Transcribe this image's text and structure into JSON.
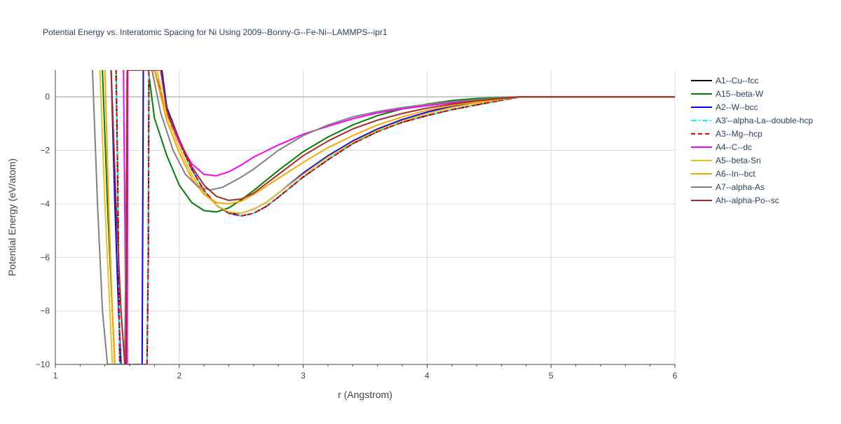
{
  "chart_data": {
    "type": "line",
    "title": "Potential Energy vs. Interatomic Spacing for Ni Using 2009--Bonny-G--Fe-Ni--LAMMPS--ipr1",
    "xlabel": "r (Angstrom)",
    "ylabel": "Potential Energy (eV/atom)",
    "xlim": [
      1,
      6
    ],
    "ylim": [
      -10,
      1
    ],
    "x_ticks": [
      1,
      2,
      3,
      4,
      5,
      6
    ],
    "x_tick_labels": [
      "1",
      "2",
      "3",
      "4",
      "5",
      "6"
    ],
    "y_ticks": [
      -10,
      -8,
      -6,
      -4,
      -2,
      0
    ],
    "y_tick_labels": [
      "−10",
      "−8",
      "−6",
      "−4",
      "−2",
      "0"
    ],
    "grid": true,
    "legend_position": "right",
    "series": [
      {
        "name": "A1--Cu--fcc",
        "color": "#000000",
        "dash": "solid",
        "points": [
          [
            1.49,
            1
          ],
          [
            1.5,
            -2
          ],
          [
            1.51,
            -6
          ],
          [
            1.52,
            -10
          ],
          [
            1.74,
            -10
          ],
          [
            1.75,
            -6
          ],
          [
            1.755,
            1
          ],
          [
            1.8,
            1
          ],
          [
            1.9,
            -0.6
          ],
          [
            2.0,
            -1.7
          ],
          [
            2.1,
            -2.7
          ],
          [
            2.2,
            -3.5
          ],
          [
            2.3,
            -4.05
          ],
          [
            2.4,
            -4.35
          ],
          [
            2.5,
            -4.45
          ],
          [
            2.6,
            -4.35
          ],
          [
            2.7,
            -4.1
          ],
          [
            2.8,
            -3.75
          ],
          [
            3.0,
            -3.0
          ],
          [
            3.2,
            -2.35
          ],
          [
            3.4,
            -1.75
          ],
          [
            3.6,
            -1.3
          ],
          [
            3.8,
            -0.95
          ],
          [
            4.0,
            -0.7
          ],
          [
            4.2,
            -0.48
          ],
          [
            4.4,
            -0.3
          ],
          [
            4.6,
            -0.13
          ],
          [
            4.75,
            0
          ],
          [
            6.0,
            0
          ]
        ]
      },
      {
        "name": "A15--beta-W",
        "color": "#008000",
        "dash": "solid",
        "points": [
          [
            1.38,
            1
          ],
          [
            1.42,
            -4
          ],
          [
            1.46,
            -8
          ],
          [
            1.48,
            -10
          ],
          [
            1.56,
            -10
          ],
          [
            1.57,
            -5
          ],
          [
            1.58,
            1
          ],
          [
            1.75,
            1
          ],
          [
            1.8,
            -0.8
          ],
          [
            1.9,
            -2.2
          ],
          [
            2.0,
            -3.3
          ],
          [
            2.1,
            -3.95
          ],
          [
            2.2,
            -4.25
          ],
          [
            2.3,
            -4.3
          ],
          [
            2.4,
            -4.15
          ],
          [
            2.5,
            -3.85
          ],
          [
            2.6,
            -3.5
          ],
          [
            2.8,
            -2.75
          ],
          [
            3.0,
            -2.05
          ],
          [
            3.2,
            -1.5
          ],
          [
            3.4,
            -1.05
          ],
          [
            3.6,
            -0.7
          ],
          [
            3.8,
            -0.45
          ],
          [
            4.0,
            -0.27
          ],
          [
            4.2,
            -0.14
          ],
          [
            4.4,
            -0.06
          ],
          [
            4.75,
            0
          ],
          [
            6.0,
            0
          ]
        ]
      },
      {
        "name": "A2--W--bcc",
        "color": "#0000ff",
        "dash": "solid",
        "points": [
          [
            1.45,
            1
          ],
          [
            1.48,
            -4
          ],
          [
            1.51,
            -8
          ],
          [
            1.53,
            -10
          ],
          [
            1.7,
            -10
          ],
          [
            1.705,
            -5
          ],
          [
            1.71,
            1
          ],
          [
            1.86,
            1
          ],
          [
            1.9,
            -0.4
          ],
          [
            2.0,
            -1.6
          ],
          [
            2.1,
            -2.7
          ],
          [
            2.2,
            -3.5
          ],
          [
            2.3,
            -4.05
          ],
          [
            2.4,
            -4.35
          ],
          [
            2.5,
            -4.35
          ],
          [
            2.6,
            -4.2
          ],
          [
            2.7,
            -3.95
          ],
          [
            2.8,
            -3.6
          ],
          [
            3.0,
            -2.85
          ],
          [
            3.2,
            -2.2
          ],
          [
            3.4,
            -1.65
          ],
          [
            3.6,
            -1.2
          ],
          [
            3.8,
            -0.85
          ],
          [
            4.0,
            -0.57
          ],
          [
            4.2,
            -0.35
          ],
          [
            4.4,
            -0.2
          ],
          [
            4.6,
            -0.08
          ],
          [
            4.75,
            0
          ],
          [
            6.0,
            0
          ]
        ]
      },
      {
        "name": "A3'--alpha-La--double-hcp",
        "color": "#00ffff",
        "dash": "dashdot",
        "points": [
          [
            1.49,
            1
          ],
          [
            1.5,
            -2
          ],
          [
            1.51,
            -6
          ],
          [
            1.52,
            -10
          ],
          [
            1.74,
            -10
          ],
          [
            1.75,
            -6
          ],
          [
            1.755,
            1
          ],
          [
            1.8,
            1
          ],
          [
            1.9,
            -0.6
          ],
          [
            2.0,
            -1.7
          ],
          [
            2.1,
            -2.7
          ],
          [
            2.2,
            -3.5
          ],
          [
            2.3,
            -4.05
          ],
          [
            2.4,
            -4.35
          ],
          [
            2.5,
            -4.45
          ],
          [
            2.6,
            -4.35
          ],
          [
            2.7,
            -4.1
          ],
          [
            2.8,
            -3.75
          ],
          [
            3.0,
            -3.0
          ],
          [
            3.2,
            -2.35
          ],
          [
            3.4,
            -1.75
          ],
          [
            3.6,
            -1.3
          ],
          [
            3.8,
            -0.95
          ],
          [
            4.0,
            -0.7
          ],
          [
            4.2,
            -0.48
          ],
          [
            4.4,
            -0.3
          ],
          [
            4.6,
            -0.13
          ],
          [
            4.75,
            0
          ],
          [
            6.0,
            0
          ]
        ]
      },
      {
        "name": "A3--Mg--hcp",
        "color": "#ff0000",
        "dash": "dash",
        "points": [
          [
            1.49,
            1
          ],
          [
            1.5,
            -2
          ],
          [
            1.51,
            -6
          ],
          [
            1.52,
            -10
          ],
          [
            1.74,
            -10
          ],
          [
            1.75,
            -6
          ],
          [
            1.755,
            1
          ],
          [
            1.8,
            1
          ],
          [
            1.9,
            -0.6
          ],
          [
            2.0,
            -1.7
          ],
          [
            2.1,
            -2.7
          ],
          [
            2.2,
            -3.5
          ],
          [
            2.3,
            -4.05
          ],
          [
            2.4,
            -4.35
          ],
          [
            2.5,
            -4.45
          ],
          [
            2.6,
            -4.35
          ],
          [
            2.7,
            -4.1
          ],
          [
            2.8,
            -3.75
          ],
          [
            3.0,
            -3.0
          ],
          [
            3.2,
            -2.35
          ],
          [
            3.4,
            -1.75
          ],
          [
            3.6,
            -1.3
          ],
          [
            3.8,
            -0.95
          ],
          [
            4.0,
            -0.7
          ],
          [
            4.2,
            -0.48
          ],
          [
            4.4,
            -0.3
          ],
          [
            4.6,
            -0.13
          ],
          [
            4.75,
            0
          ],
          [
            6.0,
            0
          ]
        ]
      },
      {
        "name": "A4--C--dc",
        "color": "#ff00ff",
        "dash": "solid",
        "points": [
          [
            1.55,
            1
          ],
          [
            1.56,
            -4
          ],
          [
            1.57,
            -10
          ],
          [
            1.58,
            -10
          ],
          [
            1.585,
            1
          ],
          [
            1.85,
            1
          ],
          [
            1.9,
            -0.5
          ],
          [
            2.0,
            -1.7
          ],
          [
            2.1,
            -2.5
          ],
          [
            2.2,
            -2.9
          ],
          [
            2.3,
            -2.95
          ],
          [
            2.4,
            -2.8
          ],
          [
            2.5,
            -2.55
          ],
          [
            2.6,
            -2.25
          ],
          [
            2.8,
            -1.8
          ],
          [
            3.0,
            -1.4
          ],
          [
            3.2,
            -1.1
          ],
          [
            3.4,
            -0.82
          ],
          [
            3.6,
            -0.6
          ],
          [
            3.8,
            -0.45
          ],
          [
            4.0,
            -0.33
          ],
          [
            4.2,
            -0.22
          ],
          [
            4.4,
            -0.12
          ],
          [
            4.6,
            -0.05
          ],
          [
            4.75,
            0
          ],
          [
            6.0,
            0
          ]
        ]
      },
      {
        "name": "A5--beta-Sn",
        "color": "#e6c229",
        "dash": "solid",
        "points": [
          [
            1.36,
            1
          ],
          [
            1.4,
            -4
          ],
          [
            1.44,
            -8
          ],
          [
            1.46,
            -10
          ],
          [
            1.56,
            -10
          ],
          [
            1.57,
            -5
          ],
          [
            1.58,
            1
          ],
          [
            1.82,
            1
          ],
          [
            1.9,
            -0.7
          ],
          [
            2.0,
            -1.9
          ],
          [
            2.1,
            -2.9
          ],
          [
            2.2,
            -3.6
          ],
          [
            2.3,
            -4.05
          ],
          [
            2.4,
            -4.3
          ],
          [
            2.5,
            -4.35
          ],
          [
            2.6,
            -4.2
          ],
          [
            2.7,
            -3.95
          ],
          [
            2.8,
            -3.6
          ],
          [
            3.0,
            -2.9
          ],
          [
            3.2,
            -2.25
          ],
          [
            3.4,
            -1.7
          ],
          [
            3.6,
            -1.25
          ],
          [
            3.8,
            -0.9
          ],
          [
            4.0,
            -0.62
          ],
          [
            4.2,
            -0.4
          ],
          [
            4.4,
            -0.23
          ],
          [
            4.6,
            -0.09
          ],
          [
            4.75,
            0
          ],
          [
            6.0,
            0
          ]
        ]
      },
      {
        "name": "A6--In--bct",
        "color": "#ffa500",
        "dash": "solid",
        "points": [
          [
            1.4,
            1
          ],
          [
            1.43,
            -4
          ],
          [
            1.46,
            -8
          ],
          [
            1.48,
            -10
          ],
          [
            1.56,
            -10
          ],
          [
            1.57,
            -5
          ],
          [
            1.58,
            1
          ],
          [
            1.8,
            1
          ],
          [
            1.9,
            -0.9
          ],
          [
            2.0,
            -2.1
          ],
          [
            2.1,
            -3.05
          ],
          [
            2.2,
            -3.65
          ],
          [
            2.3,
            -3.95
          ],
          [
            2.4,
            -4.0
          ],
          [
            2.5,
            -3.9
          ],
          [
            2.6,
            -3.65
          ],
          [
            2.8,
            -3.05
          ],
          [
            3.0,
            -2.45
          ],
          [
            3.2,
            -1.9
          ],
          [
            3.4,
            -1.45
          ],
          [
            3.6,
            -1.05
          ],
          [
            3.8,
            -0.75
          ],
          [
            4.0,
            -0.5
          ],
          [
            4.2,
            -0.32
          ],
          [
            4.4,
            -0.18
          ],
          [
            4.6,
            -0.07
          ],
          [
            4.75,
            0
          ],
          [
            6.0,
            0
          ]
        ]
      },
      {
        "name": "A7--alpha-As",
        "color": "#808080",
        "dash": "solid",
        "points": [
          [
            1.3,
            1
          ],
          [
            1.34,
            -4
          ],
          [
            1.38,
            -8
          ],
          [
            1.42,
            -10
          ],
          [
            1.56,
            -10
          ],
          [
            1.57,
            -5
          ],
          [
            1.58,
            1
          ],
          [
            1.78,
            1
          ],
          [
            1.85,
            -0.6
          ],
          [
            1.95,
            -2.0
          ],
          [
            2.05,
            -2.9
          ],
          [
            2.15,
            -3.35
          ],
          [
            2.25,
            -3.48
          ],
          [
            2.35,
            -3.38
          ],
          [
            2.5,
            -3.0
          ],
          [
            2.6,
            -2.7
          ],
          [
            2.8,
            -2.0
          ],
          [
            3.0,
            -1.45
          ],
          [
            3.2,
            -1.05
          ],
          [
            3.4,
            -0.75
          ],
          [
            3.6,
            -0.55
          ],
          [
            3.8,
            -0.4
          ],
          [
            4.0,
            -0.28
          ],
          [
            4.2,
            -0.18
          ],
          [
            4.4,
            -0.1
          ],
          [
            4.6,
            -0.04
          ],
          [
            4.75,
            0
          ],
          [
            6.0,
            0
          ]
        ]
      },
      {
        "name": "Ah--alpha-Po--sc",
        "color": "#a52a2a",
        "dash": "solid",
        "points": [
          [
            1.45,
            1
          ],
          [
            1.49,
            -4
          ],
          [
            1.53,
            -8
          ],
          [
            1.56,
            -10
          ],
          [
            1.57,
            -10
          ],
          [
            1.575,
            -5
          ],
          [
            1.58,
            1
          ],
          [
            1.85,
            1
          ],
          [
            1.9,
            -0.5
          ],
          [
            2.0,
            -1.6
          ],
          [
            2.1,
            -2.6
          ],
          [
            2.2,
            -3.3
          ],
          [
            2.3,
            -3.72
          ],
          [
            2.4,
            -3.87
          ],
          [
            2.5,
            -3.82
          ],
          [
            2.6,
            -3.6
          ],
          [
            2.8,
            -2.9
          ],
          [
            3.0,
            -2.2
          ],
          [
            3.2,
            -1.65
          ],
          [
            3.4,
            -1.2
          ],
          [
            3.6,
            -0.87
          ],
          [
            3.8,
            -0.62
          ],
          [
            4.0,
            -0.42
          ],
          [
            4.2,
            -0.27
          ],
          [
            4.4,
            -0.15
          ],
          [
            4.6,
            -0.06
          ],
          [
            4.75,
            0
          ],
          [
            6.0,
            0
          ]
        ]
      }
    ]
  }
}
